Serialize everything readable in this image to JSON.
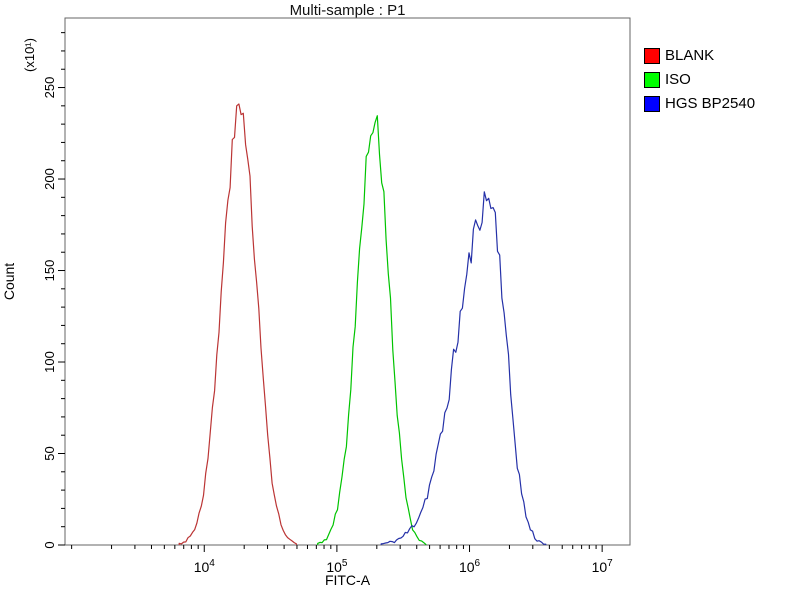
{
  "chart_data": {
    "type": "line",
    "subtype": "flow-cytometry-histogram-overlay",
    "title": "Multi-sample : P1",
    "xlabel": "FITC-A",
    "ylabel": "Count",
    "y_multiplier": "(x10¹)",
    "x_scale": "log10",
    "xlim_log10": [
      2.95,
      7.21
    ],
    "ylim": [
      0,
      288
    ],
    "y_major_ticks": [
      0,
      50,
      100,
      150,
      200,
      250
    ],
    "y_minor_step": 10,
    "x_major_ticks": [
      {
        "base": "10",
        "exp": "4",
        "log10": 4
      },
      {
        "base": "10",
        "exp": "5",
        "log10": 5
      },
      {
        "base": "10",
        "exp": "6",
        "log10": 6
      },
      {
        "base": "10",
        "exp": "7",
        "log10": 7
      }
    ],
    "x_minor_multipliers": [
      1,
      2,
      3,
      4,
      5,
      6,
      7,
      8,
      9
    ],
    "legend_position": "right",
    "grid": false,
    "series": [
      {
        "name": "BLANK",
        "swatch_color": "#ff0000",
        "line_color": "#bb3535",
        "peak_x": 18600,
        "peak_log10": 4.27,
        "peak_count": 237,
        "sigma_left": 0.135,
        "sigma_right": 0.125,
        "noise": 0.035,
        "seed": 3
      },
      {
        "name": "ISO",
        "swatch_color": "#00ff00",
        "line_color": "#00c400",
        "peak_x": 190000,
        "peak_log10": 5.28,
        "peak_count": 232,
        "sigma_left": 0.125,
        "sigma_right": 0.115,
        "noise": 0.035,
        "seed": 5
      },
      {
        "name": "HGS BP2540",
        "swatch_color": "#0000ff",
        "line_color": "#2531a8",
        "peak_x": 1410000,
        "peak_log10": 6.15,
        "peak_count": 189,
        "sigma_left": 0.24,
        "sigma_right": 0.125,
        "noise": 0.05,
        "seed": 11
      }
    ]
  }
}
